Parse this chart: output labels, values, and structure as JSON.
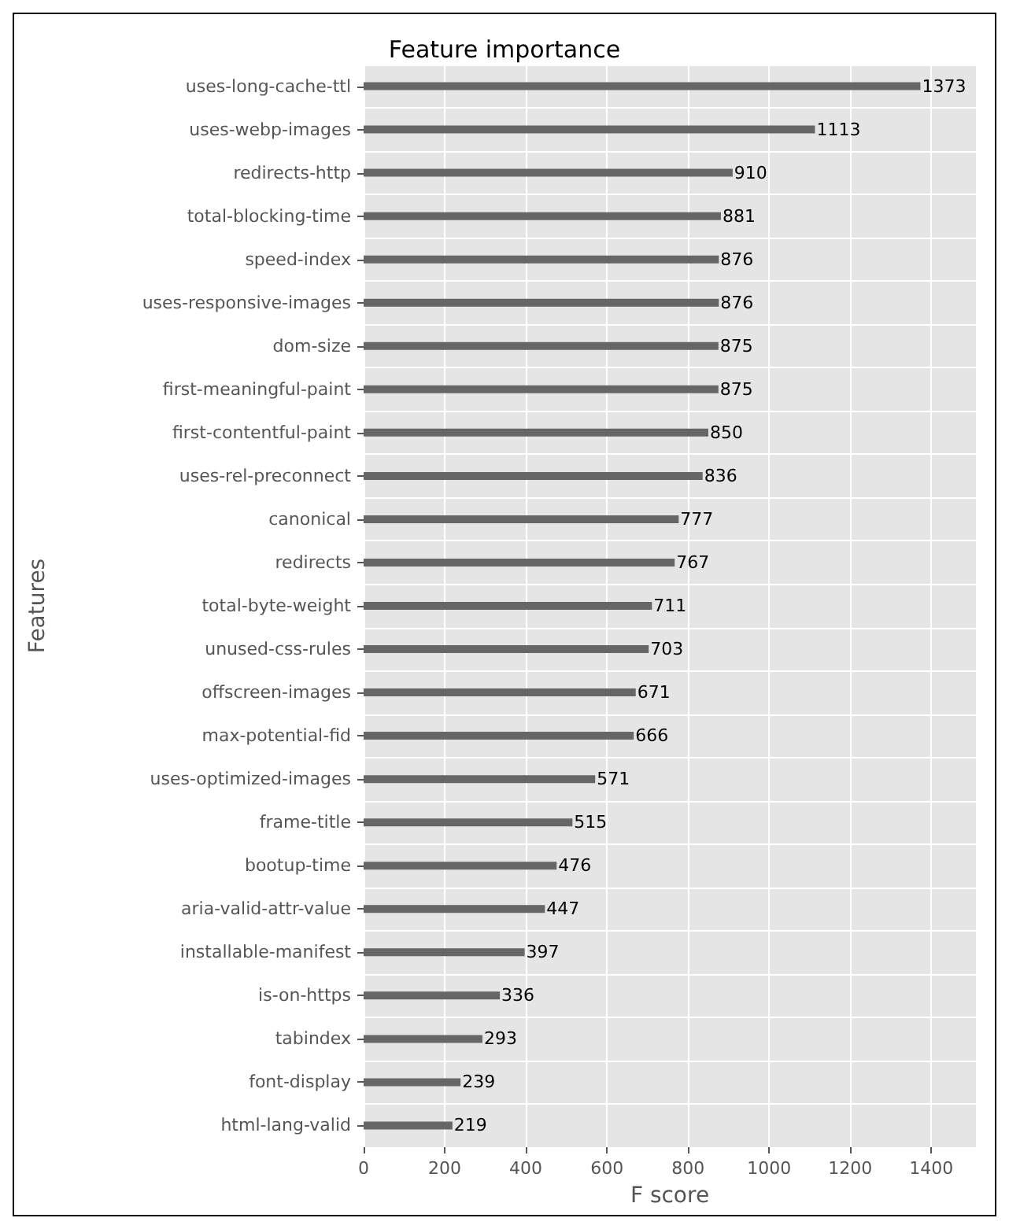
{
  "chart_data": {
    "type": "bar",
    "orientation": "horizontal",
    "title": "Feature importance",
    "xlabel": "F score",
    "ylabel": "Features",
    "categories": [
      "uses-long-cache-ttl",
      "uses-webp-images",
      "redirects-http",
      "total-blocking-time",
      "speed-index",
      "uses-responsive-images",
      "dom-size",
      "first-meaningful-paint",
      "first-contentful-paint",
      "uses-rel-preconnect",
      "canonical",
      "redirects",
      "total-byte-weight",
      "unused-css-rules",
      "offscreen-images",
      "max-potential-fid",
      "uses-optimized-images",
      "frame-title",
      "bootup-time",
      "aria-valid-attr-value",
      "installable-manifest",
      "is-on-https",
      "tabindex",
      "font-display",
      "html-lang-valid"
    ],
    "values": [
      1373,
      1113,
      910,
      881,
      876,
      876,
      875,
      875,
      850,
      836,
      777,
      767,
      711,
      703,
      671,
      666,
      571,
      515,
      476,
      447,
      397,
      336,
      293,
      239,
      219
    ],
    "color": "#666666",
    "xlim": [
      0,
      1510
    ],
    "xticks": [
      0,
      200,
      400,
      600,
      800,
      1000,
      1200,
      1400
    ],
    "grid": true,
    "data_labels": true
  }
}
